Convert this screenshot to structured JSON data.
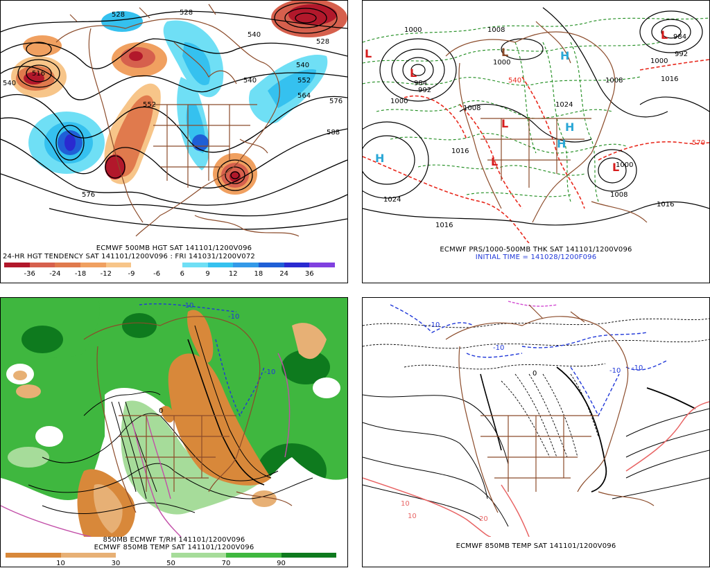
{
  "panel_tl": {
    "caption_line1": "ECMWF 500MB HGT SAT 141101/1200V096",
    "caption_line2": "24-HR HGT TENDENCY SAT 141101/1200V096 : FRI 141031/1200V072",
    "scale_colors": [
      "#b2182b",
      "#d6604d",
      "#e07a4d",
      "#f0a060",
      "#f7c589",
      "#ffffff",
      "#ffffff",
      "#6fdff5",
      "#35c1ef",
      "#3399e8",
      "#1f5fd6",
      "#2a2ad0",
      "#8040e0"
    ],
    "scale_labels": [
      "-36",
      "-24",
      "-18",
      "-12",
      "-9",
      "-6",
      "6",
      "9",
      "12",
      "18",
      "24",
      "36"
    ],
    "contour_labels": [
      "528",
      "528",
      "540",
      "528",
      "540",
      "516",
      "552",
      "576",
      "540",
      "552",
      "564",
      "576",
      "588",
      "540"
    ]
  },
  "panel_tr": {
    "caption_line1": "ECMWF PRS/1000-500MB THK SAT 141101/1200V096",
    "caption_line2": "INITIAL TIME = 141028/1200F096",
    "pressure_labels": [
      "1000",
      "1008",
      "1000",
      "992",
      "984",
      "1000",
      "1008",
      "1016",
      "1024",
      "1016",
      "1016",
      "992",
      "984",
      "1000",
      "1008",
      "1016",
      "1024",
      "1000",
      "1008"
    ],
    "high_low_marks": [
      "L",
      "L",
      "L",
      "L",
      "L",
      "H",
      "H",
      "H",
      "H",
      "L",
      "L"
    ],
    "thickness_labels": [
      "570",
      "540"
    ]
  },
  "panel_bl": {
    "caption_line1": "850MB ECMWF T/RH 141101/1200V096",
    "caption_line2": "ECMWF 850MB TEMP SAT 141101/1200V096",
    "scale_colors": [
      "#d8883a",
      "#e7b075",
      "#ffffff",
      "#a6dc9a",
      "#3fb73f",
      "#0e7a1e"
    ],
    "scale_labels": [
      "10",
      "30",
      "50",
      "70",
      "90"
    ],
    "isotherm_labels": [
      "-10",
      "-10",
      "0",
      "-10"
    ]
  },
  "panel_br": {
    "caption_line1": "ECMWF 850MB TEMP SAT 141101/1200V096",
    "isotherm_labels": [
      "-10",
      "-10",
      "-10",
      "-10",
      "0",
      "10",
      "10",
      "20"
    ]
  },
  "colors": {
    "geography": "#8b4b2a",
    "contour": "#000000",
    "thickness_red": "#e8281c",
    "thickness_green": "#1a8a1a",
    "cold_isotherm": "#1f37d8",
    "warm_isotherm": "#e86464",
    "low_mark": "#d61c1c",
    "high_mark": "#2aa7d6"
  }
}
